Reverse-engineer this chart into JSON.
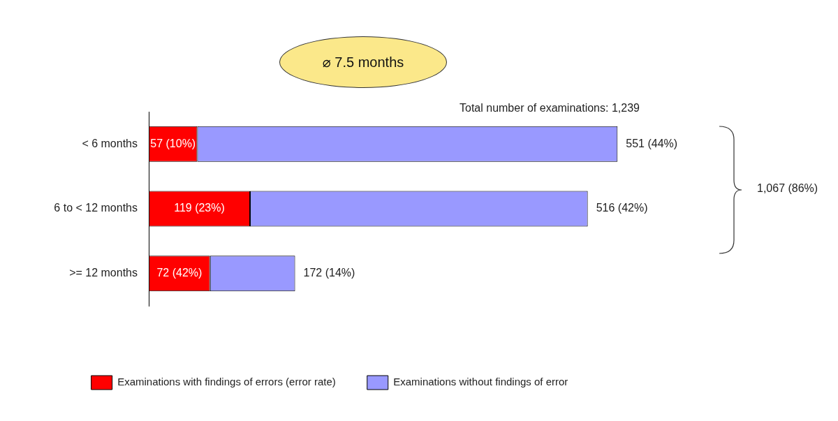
{
  "chart_data": {
    "type": "bar",
    "orientation": "horizontal",
    "stacked": true,
    "legend": "bottom",
    "categories": [
      "< 6 months",
      "6 to < 12 months",
      ">= 12 months"
    ],
    "series": [
      {
        "name": "Examinations with findings of errors (error rate)",
        "color": "#ff0000",
        "values": [
          57,
          119,
          72
        ],
        "value_labels": [
          "57 (10%)",
          "119 (23%)",
          "72 (42%)"
        ]
      },
      {
        "name": "Examinations without findings of error",
        "color": "#9999ff",
        "values": [
          494,
          397,
          100
        ]
      }
    ],
    "totals": [
      "551 (44%)",
      "516 (42%)",
      "172 (14%)"
    ],
    "annotations": [
      "⌀ 7.5 months",
      "Total number of examinations: 1,239",
      "1,067 (86%)"
    ]
  }
}
